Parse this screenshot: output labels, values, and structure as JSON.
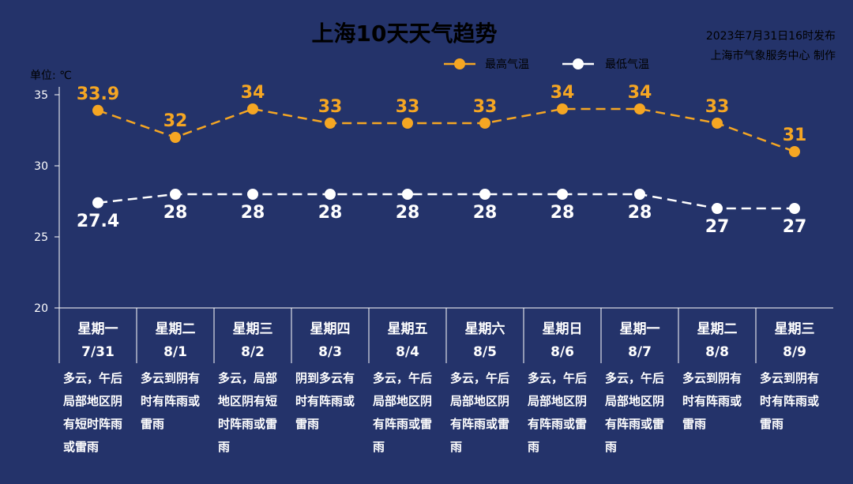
{
  "title": "上海10天天气趋势",
  "issued": "2023年7月31日16时发布",
  "producer": "上海市气象服务中心 制作",
  "unit_label": "单位: ℃",
  "colors": {
    "background": "#24336a",
    "high": "#f5a623",
    "low": "#ffffff",
    "axis": "#ffffff"
  },
  "chart_data": {
    "type": "line",
    "categories": [
      "星期一 7/31",
      "星期二 8/1",
      "星期三 8/2",
      "星期四 8/3",
      "星期五 8/4",
      "星期六 8/5",
      "星期日 8/6",
      "星期一 8/7",
      "星期二 8/8",
      "星期三 8/9"
    ],
    "series": [
      {
        "name": "最高气温",
        "values": [
          33.9,
          32,
          34,
          33,
          33,
          33,
          34,
          34,
          33,
          31
        ],
        "labels": [
          "33.9",
          "32",
          "34",
          "33",
          "33",
          "33",
          "34",
          "34",
          "33",
          "31"
        ]
      },
      {
        "name": "最低气温",
        "values": [
          27.4,
          28,
          28,
          28,
          28,
          28,
          28,
          28,
          27,
          27
        ],
        "labels": [
          "27.4",
          "28",
          "28",
          "28",
          "28",
          "28",
          "28",
          "28",
          "27",
          "27"
        ]
      }
    ],
    "ylim": [
      20,
      35
    ],
    "yticks": [
      "20",
      "25",
      "30",
      "35"
    ],
    "legend_position": "top-center",
    "grid": false
  },
  "days": [
    {
      "weekday": "星期一",
      "date": "7/31",
      "desc": [
        "多云，午后",
        "局部地区阴",
        "有短时阵雨",
        "或雷雨"
      ]
    },
    {
      "weekday": "星期二",
      "date": "8/1",
      "desc": [
        "多云到阴有",
        "时有阵雨或",
        "雷雨"
      ]
    },
    {
      "weekday": "星期三",
      "date": "8/2",
      "desc": [
        "多云，局部",
        "地区阴有短",
        "时阵雨或雷",
        "雨"
      ]
    },
    {
      "weekday": "星期四",
      "date": "8/3",
      "desc": [
        "阴到多云有",
        "时有阵雨或",
        "雷雨"
      ]
    },
    {
      "weekday": "星期五",
      "date": "8/4",
      "desc": [
        "多云，午后",
        "局部地区阴",
        "有阵雨或雷",
        "雨"
      ]
    },
    {
      "weekday": "星期六",
      "date": "8/5",
      "desc": [
        "多云，午后",
        "局部地区阴",
        "有阵雨或雷",
        "雨"
      ]
    },
    {
      "weekday": "星期日",
      "date": "8/6",
      "desc": [
        "多云，午后",
        "局部地区阴",
        "有阵雨或雷",
        "雨"
      ]
    },
    {
      "weekday": "星期一",
      "date": "8/7",
      "desc": [
        "多云，午后",
        "局部地区阴",
        "有阵雨或雷",
        "雨"
      ]
    },
    {
      "weekday": "星期二",
      "date": "8/8",
      "desc": [
        "多云到阴有",
        "时有阵雨或",
        "雷雨"
      ]
    },
    {
      "weekday": "星期三",
      "date": "8/9",
      "desc": [
        "多云到阴有",
        "时有阵雨或",
        "雷雨"
      ]
    }
  ]
}
